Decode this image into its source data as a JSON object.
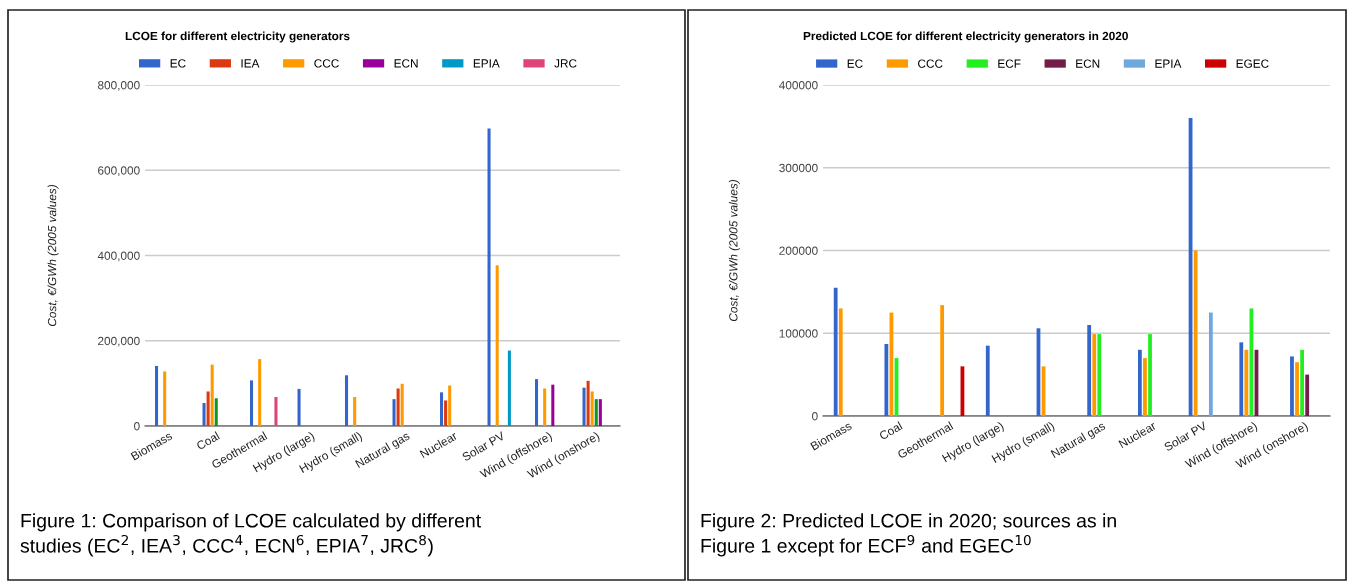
{
  "chart_data": [
    {
      "type": "bar",
      "title": "LCOE for different electricity generators",
      "ylabel": "Cost, €/GWh (2005 values)",
      "categories": [
        "Biomass",
        "Coal",
        "Geothermal",
        "Hydro (large)",
        "Hydro (small)",
        "Natural gas",
        "Nuclear",
        "Solar PV",
        "Wind (offshore)",
        "Wind (onshore)"
      ],
      "series": [
        {
          "name": "EC",
          "color": "#3366cc",
          "values": [
            141000,
            54000,
            107000,
            87000,
            119000,
            63000,
            79000,
            698000,
            110000,
            90000
          ]
        },
        {
          "name": "IEA",
          "color": "#dc3912",
          "values": [
            null,
            81000,
            null,
            null,
            null,
            88000,
            60000,
            null,
            null,
            106000
          ]
        },
        {
          "name": "CCC",
          "color": "#ff9900",
          "values": [
            128000,
            144000,
            157000,
            null,
            68000,
            99000,
            95000,
            377000,
            88000,
            81000
          ]
        },
        {
          "color": "#109618",
          "values": [
            null,
            65000,
            null,
            null,
            null,
            null,
            null,
            null,
            null,
            63000
          ]
        },
        {
          "name": "ECN",
          "color": "#990099",
          "values": [
            null,
            null,
            null,
            null,
            null,
            null,
            null,
            null,
            97000,
            63000
          ]
        },
        {
          "name": "EPIA",
          "color": "#0099c6",
          "values": [
            null,
            null,
            null,
            null,
            null,
            null,
            null,
            177000,
            null,
            null
          ]
        },
        {
          "name": "JRC",
          "color": "#dd4477",
          "values": [
            null,
            null,
            68000,
            null,
            null,
            null,
            null,
            null,
            null,
            null
          ]
        }
      ],
      "ylim": [
        0,
        800000
      ],
      "yticks": [
        0,
        {
          "value": 200000,
          "label": "200,000"
        },
        {
          "value": 400000,
          "label": "400,000"
        },
        {
          "value": 600000,
          "label": "600,000"
        },
        {
          "value": 800000,
          "label": "800,000"
        }
      ],
      "grid": "y",
      "legend": "top",
      "annotations": [
        "Figure 1: Comparison of LCOE calculated by different\nstudies (EC$^{2}$, IEA$^{3}$, CCC$^{4}$, ECN$^{6}$, EPIA$^{7}$, JRC$^{8}$)"
      ]
    },
    {
      "type": "bar",
      "title": "Predicted LCOE for different electricity generators in 2020",
      "ylabel": "Cost, €/GWh (2005 values)",
      "categories": [
        "Biomass",
        "Coal",
        "Geothermal",
        "Hydro (large)",
        "Hydro (small)",
        "Natural gas",
        "Nuclear",
        "Solar PV",
        "Wind (offshore)",
        "Wind (onshore)"
      ],
      "series": [
        {
          "name": "EC",
          "color": "#3366cc",
          "values": [
            155000,
            87000,
            null,
            85000,
            106000,
            110000,
            80000,
            360000,
            89000,
            72000
          ]
        },
        {
          "name": "CCC",
          "color": "#ff9900",
          "values": [
            130000,
            125000,
            134000,
            null,
            60000,
            99000,
            70000,
            200000,
            80000,
            65000
          ]
        },
        {
          "name": "ECF",
          "color": "#22ee22",
          "values": [
            null,
            70000,
            null,
            null,
            null,
            99000,
            99000,
            null,
            130000,
            80000
          ]
        },
        {
          "name": "ECN",
          "color": "#741b47",
          "values": [
            null,
            null,
            null,
            null,
            null,
            null,
            null,
            null,
            80000,
            50000
          ]
        },
        {
          "name": "EPIA",
          "color": "#6fa8dc",
          "values": [
            null,
            null,
            null,
            null,
            null,
            null,
            null,
            125000,
            null,
            null
          ]
        },
        {
          "name": "EGEC",
          "color": "#cc0000",
          "values": [
            null,
            null,
            60000,
            null,
            null,
            null,
            null,
            null,
            null,
            null
          ]
        }
      ],
      "ylim": [
        0,
        400000
      ],
      "yticks": [
        0,
        100000,
        200000,
        300000,
        400000
      ],
      "grid": "y",
      "legend": "top",
      "annotations": [
        "Figure 2: Predicted LCOE in 2020; sources as in\nFigure 1 except for ECF$^{9}$ and EGEC$^{10}$"
      ]
    }
  ]
}
